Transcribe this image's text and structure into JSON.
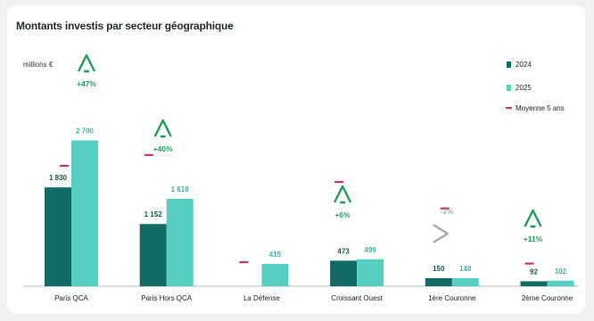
{
  "title": "Montants investis par secteur géographique",
  "chart_data": {
    "type": "bar",
    "unit_label": "millions €",
    "categories": [
      "Paris QCA",
      "Paris Hors QCA",
      "La Défense",
      "Croissant Ouest",
      "1ère Couronne",
      "2ème Couronne"
    ],
    "series": [
      {
        "name": "2024",
        "color": "#0f6b63",
        "values": [
          1830,
          1152,
          null,
          473,
          150,
          92
        ],
        "labels": [
          "1 830",
          "1 152",
          "",
          "473",
          "150",
          "92"
        ]
      },
      {
        "name": "2025",
        "color": "#55cfc2",
        "values": [
          2700,
          1618,
          415,
          499,
          148,
          102
        ],
        "labels": [
          "2 700",
          "1 618",
          "415",
          "499",
          "148",
          "102"
        ]
      }
    ],
    "benchmark": {
      "name": "Moyenne 5 ans",
      "color": "#c8326e",
      "values": [
        2230,
        2430,
        445,
        1930,
        1440,
        420
      ]
    },
    "changes": [
      {
        "text": "+47%",
        "direction": "up",
        "color": "#1f9e5a"
      },
      {
        "text": "+40%",
        "direction": "up",
        "color": "#1f9e5a"
      },
      {
        "text": "",
        "direction": "none",
        "color": ""
      },
      {
        "text": "+6%",
        "direction": "up",
        "color": "#1f9e5a"
      },
      {
        "text": "-1%",
        "direction": "flat",
        "color": "#a9a9a9"
      },
      {
        "text": "+11%",
        "direction": "up",
        "color": "#1f9e5a"
      }
    ],
    "ylim": [
      0,
      3550
    ],
    "legend": [
      "2024",
      "2025",
      "Moyenne 5 ans"
    ],
    "legend_position": "top-right",
    "grid": false
  }
}
